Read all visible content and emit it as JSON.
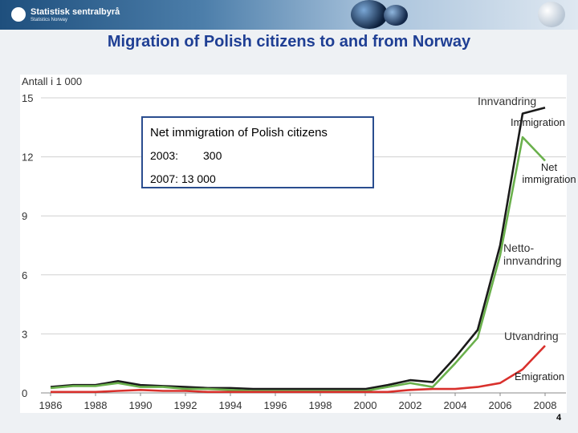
{
  "header": {
    "logo_text": "Statistisk sentralbyrå",
    "logo_sub": "Statistics Norway"
  },
  "slide": {
    "title": "Migration of Polish citizens to and from Norway",
    "page_number": "4"
  },
  "callout": {
    "heading": "Net immigration of Polish citizens",
    "rows": [
      {
        "label": "2003:",
        "value": "300"
      },
      {
        "label": "2007:",
        "value": "13 000"
      }
    ]
  },
  "english_labels": {
    "immigration": "Immigration",
    "net_immigration": "Net immigration",
    "emigration": "Emigration"
  },
  "colors": {
    "immigration": "#1a1a1a",
    "net": "#6ab04c",
    "emigration": "#d9302c",
    "grid": "#d0d0d0"
  },
  "chart_data": {
    "type": "line",
    "ylabel": "Antall i 1 000",
    "ylim": [
      0,
      15
    ],
    "yticks": [
      0,
      3,
      6,
      9,
      12,
      15
    ],
    "xlim": [
      1986,
      2008
    ],
    "xticks": [
      1986,
      1988,
      1990,
      1992,
      1994,
      1996,
      1998,
      2000,
      2002,
      2004,
      2006,
      2008
    ],
    "x": [
      1986,
      1987,
      1988,
      1989,
      1990,
      1991,
      1992,
      1993,
      1994,
      1995,
      1996,
      1997,
      1998,
      1999,
      2000,
      2001,
      2002,
      2003,
      2004,
      2005,
      2006,
      2007,
      2008
    ],
    "series": [
      {
        "name": "Innvandring",
        "color": "#1a1a1a",
        "values": [
          0.3,
          0.4,
          0.4,
          0.6,
          0.4,
          0.35,
          0.3,
          0.25,
          0.25,
          0.2,
          0.2,
          0.2,
          0.2,
          0.2,
          0.2,
          0.4,
          0.65,
          0.55,
          1.8,
          3.2,
          7.5,
          14.2,
          14.5
        ]
      },
      {
        "name": "Nettoinnvandring",
        "color": "#6ab04c",
        "values": [
          0.25,
          0.35,
          0.35,
          0.5,
          0.3,
          0.3,
          0.2,
          0.2,
          0.15,
          0.1,
          0.1,
          0.1,
          0.1,
          0.1,
          0.1,
          0.3,
          0.5,
          0.3,
          1.5,
          2.8,
          7.0,
          13.0,
          11.8
        ]
      },
      {
        "name": "Utvandring",
        "color": "#d9302c",
        "values": [
          0.05,
          0.05,
          0.05,
          0.1,
          0.15,
          0.1,
          0.1,
          0.05,
          0.05,
          0.05,
          0.05,
          0.05,
          0.05,
          0.05,
          0.05,
          0.05,
          0.15,
          0.2,
          0.2,
          0.3,
          0.5,
          1.2,
          2.4
        ]
      }
    ],
    "series_labels": [
      {
        "text": "Innvandring",
        "series": "Innvandring"
      },
      {
        "text": "Netto-",
        "text2": "innvandring",
        "series": "Nettoinnvandring"
      },
      {
        "text": "Utvandring",
        "series": "Utvandring"
      }
    ]
  }
}
